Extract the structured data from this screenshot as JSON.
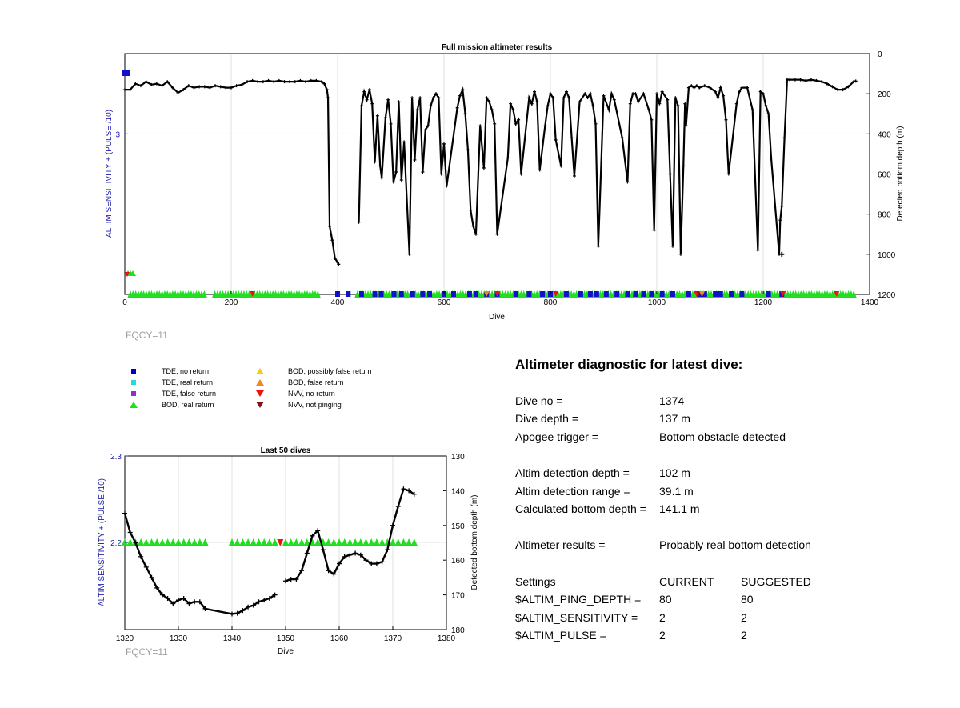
{
  "top_chart": {
    "title": "Full mission altimeter results",
    "xlabel": "Dive",
    "ylabel_left": "ALTIM SENSITIVITY + (PULSE /10)",
    "ylabel_right": "Detected bottom depth (m)",
    "x_ticks": [
      "0",
      "200",
      "400",
      "600",
      "800",
      "1000",
      "1200",
      "1400"
    ],
    "y_left_ticks": [
      "3"
    ],
    "y_right_ticks": [
      "0",
      "200",
      "400",
      "600",
      "800",
      "1000",
      "1200"
    ],
    "footnote": "FQCY=11"
  },
  "bottom_chart": {
    "title": "Last 50 dives",
    "xlabel": "Dive",
    "ylabel_left": "ALTIM SENSITIVITY + (PULSE /10)",
    "ylabel_right": "Detected bottom depth (m)",
    "x_ticks": [
      "1320",
      "1330",
      "1340",
      "1350",
      "1360",
      "1370",
      "1380"
    ],
    "y_left_ticks": [
      "2.3",
      "2.2"
    ],
    "y_right_ticks": [
      "130",
      "140",
      "150",
      "160",
      "170",
      "180"
    ],
    "footnote": "FQCY=11"
  },
  "legend": {
    "items": [
      {
        "label": "TDE, no return",
        "color": "#0000cc",
        "shape": "square"
      },
      {
        "label": "TDE, real return",
        "color": "#22dddd",
        "shape": "square"
      },
      {
        "label": "TDE, false return",
        "color": "#8833cc",
        "shape": "square"
      },
      {
        "label": "BOD, real return",
        "color": "#22dd22",
        "shape": "triangle-up"
      },
      {
        "label": "BOD, possibly false return",
        "color": "#eecc22",
        "shape": "triangle-up"
      },
      {
        "label": "BOD, false return",
        "color": "#ee8822",
        "shape": "triangle-up"
      },
      {
        "label": "NVV, no return",
        "color": "#ee1111",
        "shape": "triangle-down"
      },
      {
        "label": "NVV, not pinging",
        "color": "#881111",
        "shape": "triangle-down"
      }
    ]
  },
  "diagnostic": {
    "title": "Altimeter diagnostic for latest dive:",
    "rows": [
      {
        "label": "Dive no =",
        "value": "1374"
      },
      {
        "label": "Dive depth =",
        "value": "137 m"
      },
      {
        "label": "Apogee trigger =",
        "value": "Bottom obstacle detected"
      },
      {
        "label": "Altim detection depth =",
        "value": "102 m"
      },
      {
        "label": "Altim detection range =",
        "value": "39.1 m"
      },
      {
        "label": "Calculated bottom depth =",
        "value": "141.1 m"
      },
      {
        "label": "Altimeter results =",
        "value": "Probably real bottom detection"
      }
    ],
    "settings_header": {
      "label": "Settings",
      "current": "CURRENT",
      "suggested": "SUGGESTED"
    },
    "settings": [
      {
        "name": "$ALTIM_PING_DEPTH =",
        "current": "80",
        "suggested": "80"
      },
      {
        "name": "$ALTIM_SENSITIVITY =",
        "current": "2",
        "suggested": "2"
      },
      {
        "name": "$ALTIM_PULSE =",
        "current": "2",
        "suggested": "2"
      }
    ]
  },
  "chart_data": [
    {
      "type": "line",
      "title": "Full mission altimeter results",
      "xlabel": "Dive",
      "ylabel": "Detected bottom depth (m)",
      "xlim": [
        0,
        1400
      ],
      "ylim_right": [
        0,
        1200
      ],
      "y_right_reversed": true,
      "grid": true,
      "series": [
        {
          "name": "",
          "color": "#000000",
          "x": [
            0,
            10,
            20,
            30,
            40,
            50,
            60,
            70,
            80,
            90,
            100,
            110,
            120,
            130,
            140,
            150,
            160,
            170,
            180,
            190,
            200,
            210,
            220,
            230,
            240,
            250,
            260,
            270,
            280,
            290,
            300,
            310,
            320,
            330,
            340,
            350,
            360,
            370,
            375,
            380,
            382,
            385,
            390,
            395,
            400,
            402,
            440,
            445,
            450,
            455,
            460,
            465,
            470,
            475,
            480,
            483,
            490,
            495,
            500,
            505,
            510,
            515,
            520,
            525,
            535,
            540,
            545,
            550,
            555,
            560,
            565,
            570,
            575,
            580,
            585,
            590,
            595,
            600,
            605,
            625,
            630,
            635,
            640,
            645,
            650,
            655,
            660,
            668,
            675,
            680,
            685,
            690,
            695,
            700,
            720,
            725,
            730,
            735,
            740,
            745,
            760,
            765,
            770,
            775,
            780,
            790,
            795,
            800,
            805,
            810,
            820,
            825,
            830,
            835,
            840,
            845,
            855,
            865,
            870,
            875,
            880,
            885,
            890,
            900,
            910,
            915,
            920,
            935,
            945,
            950,
            955,
            960,
            965,
            975,
            985,
            990,
            995,
            1000,
            1005,
            1010,
            1020,
            1025,
            1030,
            1035,
            1040,
            1045,
            1050,
            1053,
            1055,
            1060,
            1065,
            1070,
            1075,
            1080,
            1090,
            1100,
            1110,
            1115,
            1120,
            1125,
            1130,
            1135,
            1150,
            1155,
            1160,
            1170,
            1180,
            1190,
            1195,
            1200,
            1205,
            1210,
            1215,
            1230,
            1232,
            1235,
            1240,
            1245,
            1250,
            1260,
            1270,
            1280,
            1290,
            1300,
            1310,
            1320,
            1330,
            1340,
            1350,
            1360,
            1370,
            1374
          ],
          "y": [
            180,
            180,
            150,
            160,
            140,
            155,
            150,
            160,
            140,
            170,
            195,
            180,
            160,
            170,
            165,
            165,
            170,
            160,
            165,
            170,
            170,
            160,
            155,
            140,
            135,
            140,
            140,
            135,
            140,
            135,
            140,
            140,
            140,
            135,
            140,
            135,
            135,
            140,
            150,
            180,
            220,
            860,
            930,
            1020,
            1040,
            1050,
            840,
            260,
            190,
            230,
            180,
            250,
            540,
            310,
            560,
            620,
            320,
            230,
            350,
            640,
            590,
            240,
            630,
            440,
            1000,
            220,
            530,
            280,
            220,
            590,
            380,
            360,
            260,
            220,
            200,
            220,
            600,
            450,
            660,
            270,
            210,
            180,
            300,
            480,
            780,
            860,
            900,
            360,
            570,
            220,
            240,
            280,
            350,
            900,
            520,
            250,
            280,
            350,
            330,
            600,
            220,
            250,
            190,
            240,
            580,
            360,
            260,
            200,
            220,
            430,
            560,
            220,
            190,
            220,
            420,
            610,
            240,
            200,
            220,
            200,
            260,
            350,
            960,
            210,
            280,
            200,
            230,
            420,
            640,
            250,
            200,
            200,
            240,
            200,
            280,
            330,
            880,
            200,
            250,
            190,
            230,
            600,
            960,
            220,
            260,
            1000,
            560,
            250,
            360,
            170,
            160,
            170,
            160,
            170,
            160,
            170,
            190,
            220,
            170,
            210,
            330,
            600,
            250,
            190,
            170,
            170,
            280,
            980,
            190,
            200,
            260,
            300,
            520,
            1000,
            830,
            760,
            420,
            130,
            130,
            130,
            130,
            135,
            130,
            135,
            140,
            150,
            165,
            180,
            180,
            165,
            140,
            137
          ]
        }
      ]
    },
    {
      "type": "line",
      "title": "Last 50 dives",
      "xlabel": "Dive",
      "ylabel": "Detected bottom depth (m)",
      "xlim": [
        1320,
        1380
      ],
      "ylim_right": [
        130,
        180
      ],
      "y_right_reversed": true,
      "grid": true,
      "series": [
        {
          "name": "",
          "color": "#000000",
          "x": [
            1320,
            1321,
            1322,
            1323,
            1324,
            1325,
            1326,
            1327,
            1328,
            1329,
            1330,
            1331,
            1332,
            1333,
            1334,
            1335,
            1340,
            1341,
            1342,
            1343,
            1344,
            1345,
            1346,
            1347,
            1348,
            1350,
            1351,
            1352,
            1353,
            1354,
            1355,
            1356,
            1357,
            1358,
            1359,
            1360,
            1361,
            1362,
            1363,
            1364,
            1365,
            1366,
            1367,
            1368,
            1369,
            1370,
            1371,
            1372,
            1373,
            1374
          ],
          "y": [
            146.5,
            152,
            155,
            159,
            162,
            165,
            168,
            170,
            171,
            172.5,
            171.5,
            171,
            172.5,
            172,
            172,
            174,
            175.5,
            175.3,
            174.5,
            173.5,
            173,
            172,
            171.5,
            171,
            170,
            166,
            165.5,
            165.5,
            163,
            158,
            153,
            151.5,
            157,
            163,
            164,
            161,
            159,
            158.5,
            158,
            158.5,
            160,
            161,
            161,
            160.5,
            157,
            150,
            144.5,
            139.5,
            140,
            141
          ]
        }
      ]
    }
  ]
}
